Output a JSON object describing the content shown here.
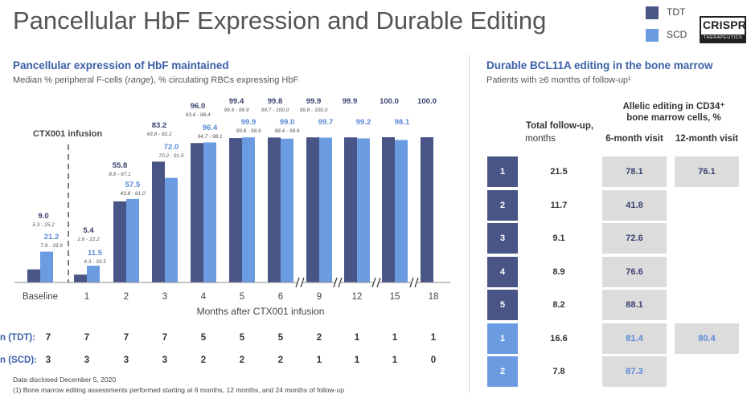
{
  "title": "Pancellular HbF Expression and Durable Editing",
  "legend": [
    {
      "label": "TDT",
      "color": "#4a5587"
    },
    {
      "label": "SCD",
      "color": "#6b9be0"
    }
  ],
  "logo": {
    "line1": "CRISPR",
    "line2": "THERAPEUTICS"
  },
  "left": {
    "title": "Pancellular expression of HbF maintained",
    "subtitle_pre": "Median % peripheral F-cells (",
    "subtitle_italic": "range",
    "subtitle_post": "), % circulating RBCs expressing HbF"
  },
  "chart_data": {
    "type": "bar",
    "categories": [
      "Baseline",
      "1",
      "2",
      "3",
      "4",
      "5",
      "6",
      "9",
      "12",
      "15",
      "18"
    ],
    "xlabel": "Months after CTX001 infusion",
    "ylabel": "",
    "ylim": [
      0,
      100
    ],
    "annotation": "CTX001 infusion",
    "series": [
      {
        "name": "TDT",
        "color": "#4a5587",
        "values": [
          9.0,
          5.4,
          55.8,
          83.2,
          96.0,
          99.4,
          99.8,
          99.9,
          99.9,
          100.0,
          100.0
        ],
        "labels": [
          "9.0",
          "5.4",
          "55.8",
          "83.2",
          "96.0",
          "99.4",
          "99.8",
          "99.9",
          "99.9",
          "100.0",
          "100.0"
        ],
        "ranges": [
          "5.3 - 25.2",
          "2.6 - 22.2",
          "8.8 - 67.1",
          "43.8 - 92.2",
          "93.6 - 98.4",
          "96.9 - 99.9",
          "99.7 - 100.0",
          "99.8 - 100.0",
          "",
          "",
          ""
        ]
      },
      {
        "name": "SCD",
        "color": "#6b9be0",
        "values": [
          21.2,
          11.5,
          57.5,
          72.0,
          96.4,
          99.9,
          99.0,
          99.7,
          99.2,
          98.1,
          null
        ],
        "labels": [
          "21.2",
          "11.5",
          "57.5",
          "72.0",
          "96.4",
          "99.9",
          "99.0",
          "99.7",
          "99.2",
          "98.1",
          ""
        ],
        "ranges": [
          "7.9 - 33.9",
          "4.3 - 33.5",
          "43.8 - 61.0",
          "70.2 - 91.5",
          "94.7 - 98.1",
          "99.8 - 99.9",
          "98.4 - 99.6",
          "",
          "",
          "",
          ""
        ]
      }
    ],
    "n_rows": [
      {
        "label": "n (TDT):",
        "values": [
          "7",
          "7",
          "7",
          "7",
          "5",
          "5",
          "5",
          "2",
          "1",
          "1",
          "1"
        ]
      },
      {
        "label": "n (SCD):",
        "values": [
          "3",
          "3",
          "3",
          "3",
          "2",
          "2",
          "2",
          "1",
          "1",
          "1",
          "0"
        ]
      }
    ]
  },
  "right": {
    "title": "Durable BCL11A editing in the bone marrow",
    "subtitle": "Patients with ≥6 months of follow-up¹",
    "header_group_line1": "Allelic editing in CD34⁺",
    "header_group_line2": "bone marrow cells, %",
    "col_followup_line1": "Total follow-up,",
    "col_followup_line2": "months",
    "col_6m": "6-month visit",
    "col_12m": "12-month visit",
    "rows": [
      {
        "id": "1",
        "type": "TDT",
        "followup": "21.5",
        "m6": "78.1",
        "m12": "76.1"
      },
      {
        "id": "2",
        "type": "TDT",
        "followup": "11.7",
        "m6": "41.8",
        "m12": ""
      },
      {
        "id": "3",
        "type": "TDT",
        "followup": "9.1",
        "m6": "72.6",
        "m12": ""
      },
      {
        "id": "4",
        "type": "TDT",
        "followup": "8.9",
        "m6": "76.6",
        "m12": ""
      },
      {
        "id": "5",
        "type": "TDT",
        "followup": "8.2",
        "m6": "88.1",
        "m12": ""
      },
      {
        "id": "1",
        "type": "SCD",
        "followup": "16.6",
        "m6": "81.4",
        "m12": "80.4"
      },
      {
        "id": "2",
        "type": "SCD",
        "followup": "7.8",
        "m6": "87.3",
        "m12": ""
      }
    ]
  },
  "footnotes": {
    "line1": "Data disclosed December 5, 2020",
    "line2": "(1) Bone marrow editing assessments performed starting at 6 months, 12 months, and 24 months of follow-up"
  },
  "colors": {
    "tdt": "#4a5587",
    "scd": "#6b9be0",
    "scd_text": "#5b8ad6",
    "title_blue": "#3b5fa6"
  }
}
